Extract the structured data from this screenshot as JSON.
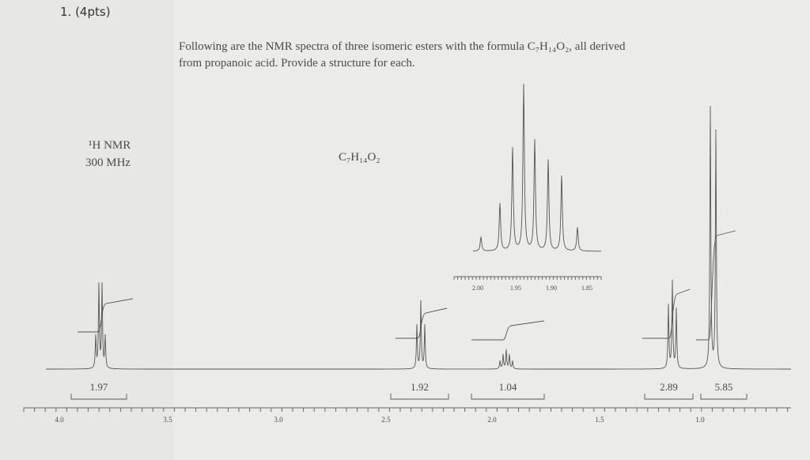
{
  "header": {
    "question": "1. (4pts)"
  },
  "prompt": {
    "line1": "Following are the NMR spectra of three isomeric esters with the formula C₇H₁₄O₂, all derived",
    "line2": "from propanoic acid. Provide a structure for each."
  },
  "spectrum": {
    "nucleus": "¹H NMR",
    "frequency": "300 MHz",
    "formula": "C₇H₁₄O₂",
    "integrations": [
      "1.97",
      "1.92",
      "1.04",
      "2.89",
      "5.85"
    ],
    "axis_labels": [
      "4.0",
      "3.5",
      "3.0",
      "2.5",
      "2.0",
      "1.5",
      "1.0"
    ],
    "inset_axis_labels": [
      "2.00",
      "1.95",
      "1.90",
      "1.85"
    ]
  }
}
